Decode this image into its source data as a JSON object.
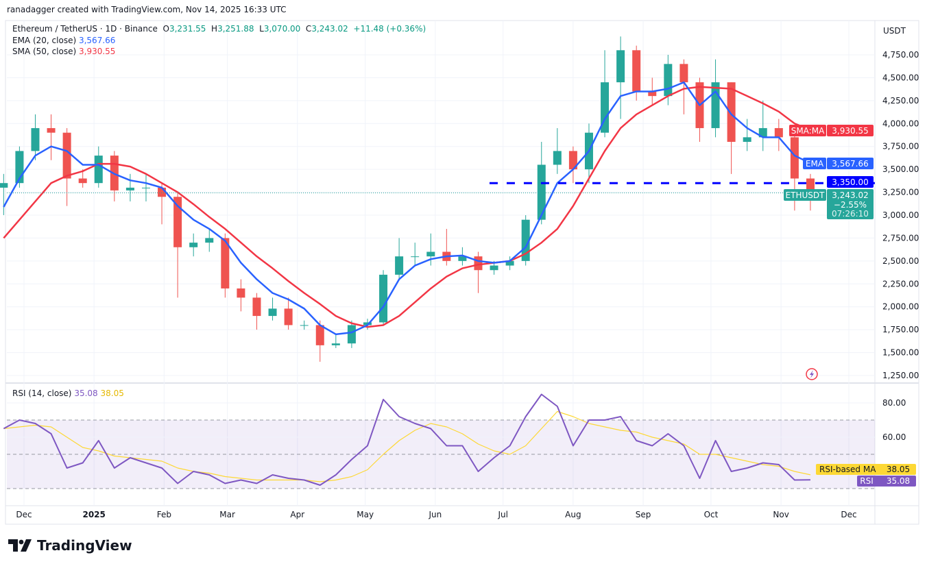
{
  "credit": "ranadagger created with TradingView.com, Nov 14, 2025 16:33 UTC",
  "legend": {
    "symbol": "Ethereum / TetherUS · 1D · Binance",
    "o_label": "O",
    "open": "3,231.55",
    "h_label": "H",
    "high": "3,251.88",
    "l_label": "L",
    "low": "3,070.00",
    "c_label": "C",
    "close": "3,243.02",
    "change": "+11.48 (+0.36%)",
    "ema_label": "EMA (20, close)",
    "ema_value": "3,567.66",
    "sma_label": "SMA (50, close)",
    "sma_value": "3,930.55"
  },
  "rsi_legend": {
    "label": "RSI (14, close)",
    "rsi_value": "35.08",
    "ma_value": "38.05"
  },
  "logo_text": "TradingView",
  "currency": "USDT",
  "colors": {
    "up": "#26a69a",
    "down": "#ef5350",
    "ema": "#2962ff",
    "sma": "#f23645",
    "level": "#0000ff",
    "rsi": "#7e57c2",
    "rsi_ma": "#fdd835",
    "price": "#26a69a"
  },
  "chart_data": [
    {
      "type": "candlestick",
      "title": "Ethereum / TetherUS · 1D · Binance",
      "ylabel": "USDT",
      "ylim": [
        1250,
        4750
      ],
      "yticks": [
        "1,250.00",
        "1,500.00",
        "1,750.00",
        "2,000.00",
        "2,250.00",
        "2,500.00",
        "2,750.00",
        "3,000.00",
        "3,250.00",
        "3,500.00",
        "3,750.00",
        "4,000.00",
        "4,250.00",
        "4,500.00",
        "4,750.00"
      ],
      "ytick_values": [
        1250,
        1500,
        1750,
        2000,
        2250,
        2500,
        2750,
        3000,
        3250,
        3500,
        3750,
        4000,
        4250,
        4500,
        4750
      ],
      "xticks": [
        {
          "label": "Dec",
          "date": "2024-12-01"
        },
        {
          "label": "2025",
          "date": "2025-01-01"
        },
        {
          "label": "Feb",
          "date": "2025-02-01"
        },
        {
          "label": "Mar",
          "date": "2025-03-01"
        },
        {
          "label": "Apr",
          "date": "2025-04-01"
        },
        {
          "label": "May",
          "date": "2025-05-01"
        },
        {
          "label": "Jun",
          "date": "2025-06-01"
        },
        {
          "label": "Jul",
          "date": "2025-07-01"
        },
        {
          "label": "Aug",
          "date": "2025-08-01"
        },
        {
          "label": "Sep",
          "date": "2025-09-01"
        },
        {
          "label": "Oct",
          "date": "2025-10-01"
        },
        {
          "label": "Nov",
          "date": "2025-11-01"
        },
        {
          "label": "Dec",
          "date": "2025-12-01"
        }
      ],
      "dates": [
        "2024-11-22",
        "2024-11-29",
        "2024-12-06",
        "2024-12-13",
        "2024-12-20",
        "2024-12-27",
        "2025-01-03",
        "2025-01-10",
        "2025-01-17",
        "2025-01-24",
        "2025-01-31",
        "2025-02-07",
        "2025-02-14",
        "2025-02-21",
        "2025-02-28",
        "2025-03-07",
        "2025-03-14",
        "2025-03-21",
        "2025-03-28",
        "2025-04-04",
        "2025-04-11",
        "2025-04-18",
        "2025-04-25",
        "2025-05-02",
        "2025-05-09",
        "2025-05-16",
        "2025-05-23",
        "2025-05-30",
        "2025-06-06",
        "2025-06-13",
        "2025-06-20",
        "2025-06-27",
        "2025-07-04",
        "2025-07-11",
        "2025-07-18",
        "2025-07-25",
        "2025-08-01",
        "2025-08-08",
        "2025-08-15",
        "2025-08-22",
        "2025-08-29",
        "2025-09-05",
        "2025-09-12",
        "2025-09-19",
        "2025-09-26",
        "2025-10-03",
        "2025-10-10",
        "2025-10-17",
        "2025-10-24",
        "2025-10-31",
        "2025-11-07",
        "2025-11-14"
      ],
      "open": [
        3300,
        3350,
        3700,
        3950,
        3900,
        3400,
        3350,
        3650,
        3270,
        3300,
        3300,
        3200,
        2650,
        2700,
        2750,
        2200,
        2100,
        1900,
        1980,
        1800,
        1800,
        1580,
        1600,
        1800,
        1830,
        2350,
        2550,
        2550,
        2600,
        2500,
        2550,
        2400,
        2450,
        2500,
        2950,
        3550,
        3700,
        3500,
        3900,
        4450,
        4800,
        4350,
        4300,
        4650,
        4450,
        3950,
        4450,
        3800,
        3850,
        3950,
        3850,
        3400
      ],
      "high": [
        3450,
        3750,
        4100,
        4100,
        3950,
        3500,
        3750,
        3700,
        3450,
        3450,
        3350,
        3250,
        2800,
        2850,
        2800,
        2300,
        2150,
        2100,
        2100,
        1850,
        1850,
        1700,
        1850,
        1870,
        2400,
        2750,
        2700,
        2800,
        2850,
        2650,
        2600,
        2500,
        2550,
        3000,
        3800,
        3950,
        3750,
        4000,
        4800,
        4950,
        4850,
        4500,
        4750,
        4700,
        4500,
        4700,
        4450,
        4050,
        4250,
        4050,
        3900,
        3450
      ],
      "low": [
        3000,
        3300,
        3600,
        3600,
        3100,
        3300,
        3300,
        3150,
        3150,
        3150,
        2900,
        2100,
        2550,
        2600,
        2100,
        1950,
        1750,
        1850,
        1750,
        1750,
        1400,
        1550,
        1550,
        1750,
        1800,
        2300,
        2450,
        2450,
        2450,
        2450,
        2150,
        2350,
        2400,
        2450,
        2900,
        3450,
        3350,
        3350,
        3850,
        4050,
        4250,
        4200,
        4200,
        4100,
        3800,
        3850,
        3450,
        3700,
        3700,
        3700,
        3050,
        3050
      ],
      "close": [
        3350,
        3700,
        3950,
        3900,
        3400,
        3350,
        3650,
        3270,
        3300,
        3300,
        3200,
        2650,
        2700,
        2750,
        2200,
        2100,
        1900,
        1980,
        1800,
        1800,
        1580,
        1600,
        1800,
        1830,
        2350,
        2550,
        2550,
        2600,
        2500,
        2550,
        2400,
        2450,
        2500,
        2950,
        3550,
        3700,
        3500,
        3900,
        4450,
        4800,
        4350,
        4300,
        4650,
        4450,
        3950,
        4450,
        3800,
        3850,
        3950,
        3850,
        3400,
        3243.02
      ],
      "series": [
        {
          "name": "EMA",
          "values": [
            3090,
            3400,
            3650,
            3750,
            3700,
            3550,
            3550,
            3450,
            3380,
            3350,
            3300,
            3100,
            2950,
            2850,
            2720,
            2480,
            2300,
            2150,
            2080,
            1980,
            1800,
            1700,
            1720,
            1800,
            2000,
            2300,
            2450,
            2520,
            2550,
            2560,
            2500,
            2480,
            2500,
            2650,
            3000,
            3350,
            3500,
            3700,
            4050,
            4300,
            4350,
            4350,
            4380,
            4450,
            4200,
            4350,
            4100,
            3950,
            3850,
            3850,
            3650,
            3567.66
          ]
        },
        {
          "name": "SMA:MA",
          "values": [
            2750,
            2950,
            3150,
            3350,
            3430,
            3480,
            3560,
            3560,
            3530,
            3450,
            3350,
            3250,
            3120,
            2980,
            2850,
            2700,
            2550,
            2420,
            2280,
            2150,
            2030,
            1900,
            1820,
            1780,
            1800,
            1900,
            2050,
            2200,
            2330,
            2420,
            2460,
            2480,
            2500,
            2580,
            2700,
            2850,
            3100,
            3400,
            3700,
            3950,
            4100,
            4200,
            4300,
            4380,
            4400,
            4390,
            4380,
            4300,
            4220,
            4130,
            4000,
            3930.55
          ]
        }
      ],
      "horizontal_level": {
        "value": 3350,
        "label": "3,350.00",
        "from_date": "2025-06-25",
        "style": "dashed"
      },
      "price_label": {
        "name": "ETHUSDT",
        "value": "3,243.02",
        "change": "−2.55%",
        "countdown": "07:26:10",
        "price": 3243.02
      },
      "sma_tag": {
        "name": "SMA:MA",
        "value": "3,930.55"
      },
      "ema_tag": {
        "name": "EMA",
        "value": "3,567.66"
      },
      "grid": true
    },
    {
      "type": "line",
      "title": "RSI (14, close)",
      "ylim": [
        25,
        92
      ],
      "yticks": [
        "80.00",
        "60.00"
      ],
      "ytick_values": [
        80,
        60
      ],
      "bands": {
        "upper": 70,
        "middle": 50,
        "lower": 30
      },
      "series": [
        {
          "name": "RSI",
          "values": [
            65,
            70,
            68,
            62,
            42,
            45,
            58,
            42,
            48,
            45,
            42,
            33,
            40,
            38,
            33,
            35,
            33,
            38,
            36,
            35,
            32,
            38,
            47,
            55,
            82,
            72,
            68,
            65,
            55,
            55,
            40,
            48,
            55,
            72,
            85,
            78,
            55,
            70,
            70,
            72,
            58,
            55,
            62,
            55,
            36,
            58,
            40,
            42,
            45,
            44,
            35,
            35.08
          ]
        },
        {
          "name": "RSI-based MA",
          "values": [
            65,
            66,
            67,
            66,
            60,
            54,
            52,
            49,
            48,
            47,
            46,
            42,
            40,
            39,
            37,
            36,
            35,
            35,
            35,
            35,
            34,
            35,
            37,
            41,
            50,
            58,
            64,
            68,
            66,
            62,
            56,
            52,
            50,
            55,
            65,
            75,
            72,
            68,
            66,
            64,
            63,
            60,
            58,
            56,
            50,
            50,
            48,
            46,
            44,
            43,
            40,
            38.05
          ]
        }
      ],
      "tags": {
        "rsi_ma": "38.05",
        "rsi": "35.08"
      },
      "grid": true
    }
  ]
}
